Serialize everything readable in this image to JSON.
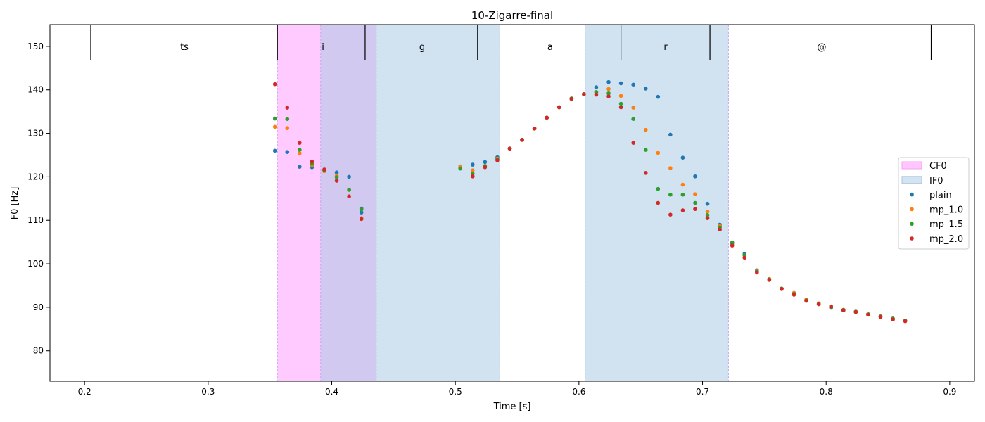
{
  "chart_data": {
    "type": "scatter",
    "title": "10-Zigarre-final",
    "xlabel": "Time [s]",
    "ylabel": "F0 [Hz]",
    "xlim": [
      0.172,
      0.92
    ],
    "ylim": [
      73,
      155
    ],
    "xticks": [
      0.2,
      0.3,
      0.4,
      0.5,
      0.6,
      0.7,
      0.8,
      0.9
    ],
    "yticks": [
      80,
      90,
      100,
      110,
      120,
      130,
      140,
      150
    ],
    "xtick_labels": [
      "0.2",
      "0.3",
      "0.4",
      "0.5",
      "0.6",
      "0.7",
      "0.8",
      "0.9"
    ],
    "ytick_labels": [
      "80",
      "90",
      "100",
      "110",
      "120",
      "130",
      "140",
      "150"
    ],
    "grid": false,
    "legend_position": "right",
    "segment_boundaries": [
      0.205,
      0.356,
      0.427,
      0.518,
      0.634,
      0.706,
      0.885
    ],
    "segments": [
      {
        "label": "ts",
        "x": 0.28
      },
      {
        "label": "i",
        "x": 0.392
      },
      {
        "label": "g",
        "x": 0.5
      },
      {
        "label": "a",
        "x": 0.575
      },
      {
        "label": "r",
        "x": 0.7
      },
      {
        "label": "@",
        "x": 0.795
      }
    ],
    "spans": [
      {
        "name": "CF0",
        "color": "#ff80ff",
        "opacity": 0.42,
        "start": 0.356,
        "end": 0.436
      },
      {
        "name": "IF0",
        "color": "#a6c8e2",
        "opacity": 0.52,
        "start": 0.391,
        "end": 0.536
      },
      {
        "name": "IF0",
        "color": "#a6c8e2",
        "opacity": 0.52,
        "start": 0.605,
        "end": 0.721
      }
    ],
    "span_border_color": "#c8a8f0",
    "legend": [
      {
        "name": "CF0",
        "kind": "patch",
        "color": "#ffc6ff",
        "edge": "#f5a0f5"
      },
      {
        "name": "IF0",
        "kind": "patch",
        "color": "#d4e3f1",
        "edge": "#a8c4e0"
      },
      {
        "name": "plain",
        "kind": "dot",
        "color": "#1f77b4"
      },
      {
        "name": "mp_1.0",
        "kind": "dot",
        "color": "#ff7f0e"
      },
      {
        "name": "mp_1.5",
        "kind": "dot",
        "color": "#2ca02c"
      },
      {
        "name": "mp_2.0",
        "kind": "dot",
        "color": "#d62728"
      }
    ],
    "series": [
      {
        "name": "plain",
        "color": "#1f77b4",
        "x": [
          0.354,
          0.364,
          0.374,
          0.384,
          0.394,
          0.404,
          0.414,
          0.424,
          0.424,
          0.504,
          0.514,
          0.524,
          0.534,
          0.544,
          0.554,
          0.564,
          0.574,
          0.584,
          0.594,
          0.604,
          0.614,
          0.624,
          0.634,
          0.644,
          0.654,
          0.664,
          0.674,
          0.684,
          0.694,
          0.704,
          0.714,
          0.724,
          0.734,
          0.744,
          0.754,
          0.764,
          0.774,
          0.784,
          0.794,
          0.804,
          0.814,
          0.824,
          0.834,
          0.844,
          0.854,
          0.864
        ],
        "y": [
          126,
          125.7,
          122.3,
          122.2,
          121.5,
          121,
          120,
          112.7,
          111.8,
          122.2,
          122.8,
          123.4,
          124.5,
          126.5,
          128.5,
          131.1,
          133.6,
          136,
          138,
          139,
          140.6,
          141.8,
          141.5,
          141.2,
          140.3,
          138.4,
          129.7,
          124.4,
          120.1,
          113.8,
          109,
          104.9,
          102.3,
          98.5,
          96.5,
          94.3,
          93.3,
          91.6,
          90.8,
          89.9,
          89.3,
          89,
          88.4,
          87.9,
          87.3,
          86.9
        ]
      },
      {
        "name": "mp_1.0",
        "color": "#ff7f0e",
        "x": [
          0.354,
          0.364,
          0.374,
          0.384,
          0.394,
          0.404,
          0.414,
          0.424,
          0.504,
          0.514,
          0.524,
          0.534,
          0.544,
          0.554,
          0.564,
          0.574,
          0.584,
          0.594,
          0.604,
          0.614,
          0.624,
          0.634,
          0.644,
          0.654,
          0.664,
          0.674,
          0.684,
          0.694,
          0.704,
          0.714,
          0.724,
          0.734,
          0.744,
          0.754,
          0.764,
          0.774,
          0.784,
          0.794,
          0.804,
          0.814,
          0.824,
          0.834,
          0.844,
          0.854,
          0.864
        ],
        "y": [
          131.5,
          131.2,
          125.4,
          122.7,
          121.3,
          120.2,
          117,
          110.5,
          122.4,
          121.5,
          122.5,
          124.2,
          126.5,
          128.5,
          131.1,
          133.6,
          136,
          138,
          139,
          139.4,
          140.2,
          138.6,
          135.9,
          130.8,
          125.5,
          122,
          118.2,
          116,
          112,
          108.7,
          104.6,
          101.9,
          98.3,
          96.5,
          94.3,
          93.3,
          91.8,
          90.9,
          90.1,
          89.4,
          89,
          88.4,
          87.9,
          87.4,
          86.9
        ]
      },
      {
        "name": "mp_1.5",
        "color": "#2ca02c",
        "x": [
          0.354,
          0.364,
          0.374,
          0.384,
          0.394,
          0.404,
          0.414,
          0.424,
          0.504,
          0.514,
          0.524,
          0.534,
          0.544,
          0.554,
          0.564,
          0.574,
          0.584,
          0.594,
          0.604,
          0.614,
          0.624,
          0.634,
          0.644,
          0.654,
          0.664,
          0.674,
          0.684,
          0.694,
          0.704,
          0.714,
          0.724,
          0.734,
          0.744,
          0.754,
          0.764,
          0.774,
          0.784,
          0.794,
          0.804,
          0.814,
          0.824,
          0.834,
          0.844,
          0.854,
          0.864
        ],
        "y": [
          133.4,
          133.3,
          126.2,
          123,
          121.5,
          119.9,
          117,
          112.5,
          121.9,
          120.7,
          122.5,
          124,
          126.5,
          128.5,
          131.1,
          133.6,
          136,
          138,
          139,
          139.5,
          139.2,
          136.8,
          133.3,
          126.2,
          117.2,
          115.9,
          115.9,
          114,
          111.2,
          108.4,
          104.8,
          102,
          98.2,
          96.4,
          94.3,
          93.1,
          91.6,
          90.8,
          90,
          89.4,
          89,
          88.4,
          87.9,
          87.4,
          86.9
        ]
      },
      {
        "name": "mp_2.0",
        "color": "#d62728",
        "x": [
          0.354,
          0.364,
          0.374,
          0.384,
          0.394,
          0.404,
          0.414,
          0.424,
          0.514,
          0.524,
          0.534,
          0.544,
          0.554,
          0.564,
          0.574,
          0.584,
          0.594,
          0.604,
          0.614,
          0.624,
          0.634,
          0.644,
          0.654,
          0.664,
          0.674,
          0.684,
          0.694,
          0.704,
          0.714,
          0.724,
          0.734,
          0.744,
          0.754,
          0.764,
          0.774,
          0.784,
          0.794,
          0.804,
          0.814,
          0.824,
          0.834,
          0.844,
          0.854,
          0.864
        ],
        "y": [
          141.3,
          135.9,
          127.8,
          123.5,
          121.7,
          119.1,
          115.5,
          110.3,
          120.1,
          122.2,
          123.8,
          126.5,
          128.5,
          131.1,
          133.6,
          136,
          137.9,
          139,
          138.9,
          138.5,
          136,
          127.8,
          120.9,
          114,
          111.3,
          112.3,
          112.6,
          110.5,
          107.9,
          104.2,
          101.4,
          98,
          96.3,
          94.2,
          92.9,
          91.5,
          90.7,
          90.2,
          89.3,
          88.9,
          88.3,
          87.8,
          87.2,
          86.8
        ]
      }
    ]
  }
}
